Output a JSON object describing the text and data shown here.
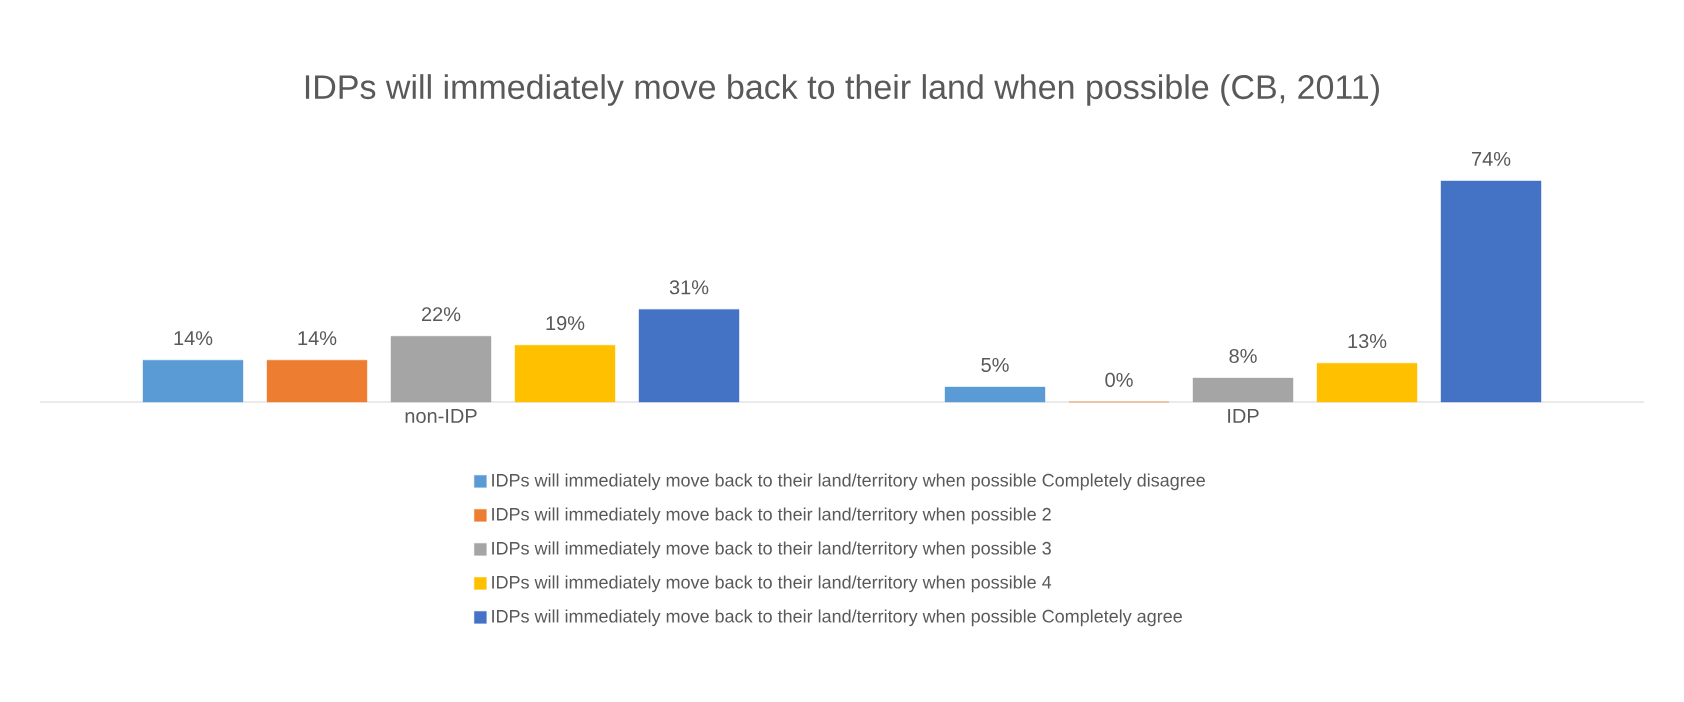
{
  "chart_data": {
    "type": "bar",
    "title": "IDPs will immediately move back to their land when possible (CB, 2011)",
    "categories": [
      "non-IDP",
      "IDP"
    ],
    "series": [
      {
        "name": "IDPs will immediately move back to their land/territory when possible Completely disagree",
        "color": "#5b9bd5",
        "values": [
          14,
          5
        ],
        "value_labels": [
          "14%",
          "5%"
        ]
      },
      {
        "name": "IDPs will immediately move back to their land/territory when possible 2",
        "color": "#ed7d31",
        "values": [
          14,
          0
        ],
        "value_labels": [
          "14%",
          "0%"
        ]
      },
      {
        "name": "IDPs will immediately move back to their land/territory when possible 3",
        "color": "#a5a5a5",
        "values": [
          22,
          8
        ],
        "value_labels": [
          "22%",
          "8%"
        ]
      },
      {
        "name": "IDPs will immediately move back to their land/territory when possible 4",
        "color": "#ffc000",
        "values": [
          19,
          13
        ],
        "value_labels": [
          "19%",
          "13%"
        ]
      },
      {
        "name": "IDPs will immediately move back to their land/territory when possible Completely agree",
        "color": "#4472c4",
        "values": [
          31,
          74
        ],
        "value_labels": [
          "31%",
          "74%"
        ]
      }
    ],
    "legend": "bottom"
  }
}
